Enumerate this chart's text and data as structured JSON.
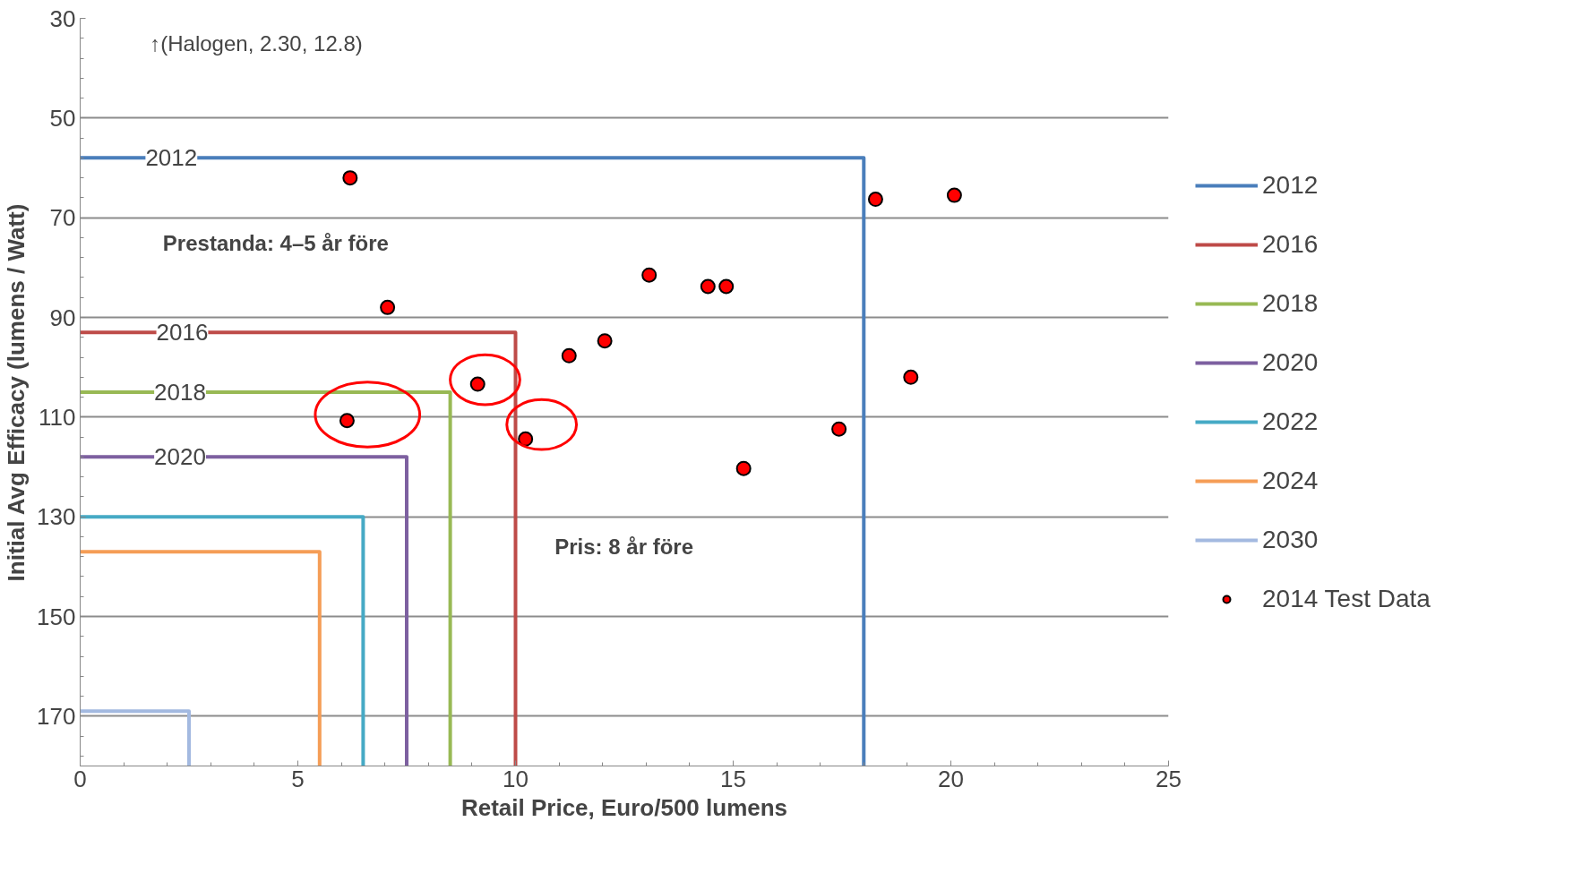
{
  "chart_data": {
    "type": "line",
    "xlabel": "Retail Price, Euro/500 lumens",
    "ylabel": "Initial Avg Efficacy (lumens / Watt)",
    "xlim": [
      0,
      25
    ],
    "xticks": [
      0,
      5,
      10,
      15,
      20,
      25
    ],
    "ylim": [
      180,
      30
    ],
    "yticks": [
      30,
      50,
      70,
      90,
      110,
      130,
      150,
      170
    ],
    "grid": "y",
    "legend": "right",
    "line_style": "solid",
    "series": [
      {
        "name": "2012",
        "color": "#4a7ebb",
        "x": [
          0,
          18,
          18
        ],
        "values": [
          58,
          58,
          180
        ]
      },
      {
        "name": "2016",
        "color": "#be4b48",
        "x": [
          0,
          10,
          10
        ],
        "values": [
          93,
          93,
          180
        ]
      },
      {
        "name": "2018",
        "color": "#98b954",
        "x": [
          0,
          8.5,
          8.5
        ],
        "values": [
          105,
          105,
          180
        ]
      },
      {
        "name": "2020",
        "color": "#7d60a0",
        "x": [
          0,
          7.5,
          7.5
        ],
        "values": [
          118,
          118,
          180
        ]
      },
      {
        "name": "2022",
        "color": "#46aac5",
        "x": [
          0,
          6.5,
          6.5
        ],
        "values": [
          130,
          130,
          180
        ]
      },
      {
        "name": "2024",
        "color": "#f59d56",
        "x": [
          0,
          5.5,
          5.5
        ],
        "values": [
          137,
          137,
          180
        ]
      },
      {
        "name": "2030",
        "color": "#a3b9e0",
        "x": [
          0,
          2.5,
          2.5
        ],
        "values": [
          169,
          169,
          180
        ]
      },
      {
        "name": "2014 Test Data",
        "type": "scatter",
        "marker": "circle",
        "color": "#ff0000",
        "x": [
          6.2,
          7.06,
          9.13,
          6.13,
          10.23,
          11.23,
          12.05,
          13.07,
          14.42,
          14.84,
          15.24,
          17.43,
          19.08,
          18.27,
          20.08
        ],
        "values": [
          62,
          88,
          103.4,
          110.7,
          114.4,
          97.7,
          94.7,
          81.5,
          83.8,
          83.8,
          120.3,
          112.4,
          102,
          66.3,
          65.5
        ]
      }
    ],
    "annotations": [
      "↑(Halogen, 2.30, 12.8)",
      {
        "text": "2012",
        "x": 1.5,
        "y": 58
      },
      {
        "text": "2016",
        "x": 1.75,
        "y": 93
      },
      {
        "text": "2018",
        "x": 1.7,
        "y": 105
      },
      {
        "text": "2020",
        "x": 1.7,
        "y": 118
      },
      "Prestanda: 4–5 år före",
      "Pris: 8 år före"
    ]
  }
}
